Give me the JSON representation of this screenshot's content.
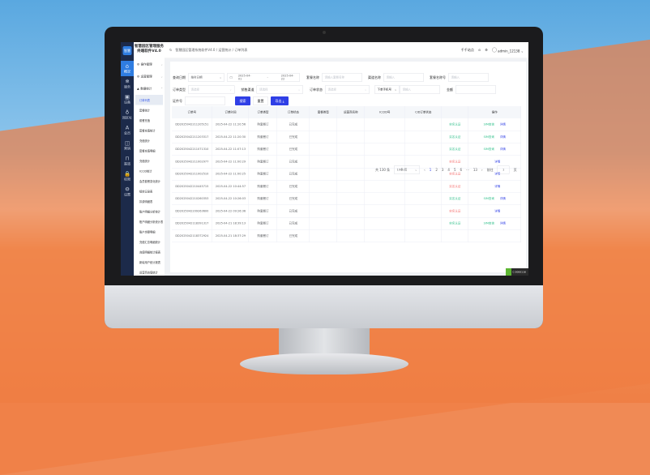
{
  "app": {
    "logo": "智慧",
    "title": "智慧园区管理服务终端软件V4.0"
  },
  "iconbar": [
    {
      "icon": "home-icon",
      "g": "⌂",
      "label": "概况"
    },
    {
      "icon": "service-icon",
      "g": "❄",
      "label": "服务"
    },
    {
      "icon": "device-icon",
      "g": "▣",
      "label": "设备"
    },
    {
      "icon": "park-icon",
      "g": "♁",
      "label": "园区址"
    },
    {
      "icon": "member-icon",
      "g": "A",
      "label": "会员"
    },
    {
      "icon": "marketing-icon",
      "g": "◫",
      "label": "营销"
    },
    {
      "icon": "channel-icon",
      "g": "⊓",
      "label": "渠道"
    },
    {
      "icon": "lock-icon",
      "g": "🔒",
      "label": "权限"
    },
    {
      "icon": "settings-icon",
      "g": "⚙",
      "label": "设置"
    }
  ],
  "menu": {
    "groups": [
      "操作管理",
      "运营管理",
      "数据统计"
    ],
    "items": [
      "订单列表",
      "套餐统计",
      "套餐充值",
      "套餐充值统计",
      "充值统计",
      "套餐充值明细",
      "充值统计",
      "ICCID统计",
      "会员套餐变化统计",
      "短信记录表",
      "扣费明细表",
      "账户明细分析统计",
      "账户明细分析统计表",
      "账户余额明细",
      "充值汇总明细统计",
      "充值明细统计报表",
      "新增用户统计报表",
      "运营商充值统计"
    ]
  },
  "header": {
    "breadcrumb": "智慧园区管理系统软件V4.0 / 运营统计 / 订单列表",
    "site": "千千站点",
    "user": "admin_12138"
  },
  "filters": {
    "date_label": "查询日期",
    "date_type": "按时日期",
    "date_start": "2025-04-01",
    "date_sep": "-",
    "date_end": "2025-04-22",
    "pkg_label": "套餐名称",
    "pkg_ph": "请输入套餐名称",
    "channel_label": "渠道名称",
    "channel_ph": "请输入",
    "pkgno_label": "套餐名称号",
    "pkgno_ph": "请输入",
    "type_label": "订单类型",
    "type_ph": "请选择",
    "sales_label": "销售渠道",
    "sales_ph": "请选择",
    "status_label": "订单状态",
    "status_ph": "请选择",
    "phone_sel": "下单手机号",
    "phone_ph": "请输入",
    "amount_label": "金额",
    "id_label": "证件号",
    "search": "搜索",
    "reset": "重置",
    "export": "导出 ⤓"
  },
  "table": {
    "columns": [
      "订单号",
      "订单时间",
      "订单类型",
      "订单状态",
      "套餐类型",
      "运营商名称",
      "ICCID号",
      "CID订单状态",
      "",
      "操作"
    ],
    "rows": [
      {
        "id": "DD2025042211205151",
        "time": "2025-04-22 11:20:56",
        "type": "购套餐订",
        "status": "已完成",
        "tag": "实名认证",
        "ok": true,
        "sim": "SIM查询",
        "detail": "详情"
      },
      {
        "id": "DD2025042211203317",
        "time": "2025-04-22 11:20:30",
        "type": "购套餐订",
        "status": "已完成",
        "tag": "实名认证",
        "ok": true,
        "sim": "SIM查询",
        "detail": "详情"
      },
      {
        "id": "DD2025042211071310",
        "time": "2025-04-22 11:07:13",
        "type": "购套餐订",
        "status": "已完成",
        "tag": "实名认证",
        "ok": true,
        "sim": "SIM查询",
        "detail": "详情"
      },
      {
        "id": "DD2025042211002977",
        "time": "2025-04-22 11:00:29",
        "type": "购套餐订",
        "status": "已完成",
        "tag": "实名认证",
        "ok": false,
        "sim": "",
        "detail": "详情"
      },
      {
        "id": "DD2025042211002510",
        "time": "2025-04-22 11:00:25",
        "type": "购套餐订",
        "status": "已完成",
        "tag": "实名认证",
        "ok": false,
        "sim": "",
        "detail": "详情"
      },
      {
        "id": "DD2025042210445715",
        "time": "2025-04-22 10:44:57",
        "type": "购套餐订",
        "status": "已完成",
        "tag": "实名认证",
        "ok": false,
        "sim": "",
        "detail": "详情"
      },
      {
        "id": "DD2025042210260353",
        "time": "2025-04-22 10:26:03",
        "type": "购套餐订",
        "status": "已完成",
        "tag": "实名认证",
        "ok": true,
        "sim": "SIM查询",
        "detail": "详情"
      },
      {
        "id": "DD2025042209263600",
        "time": "2025-04-22 09:26:36",
        "type": "购套餐订",
        "status": "已完成",
        "tag": "实名认证",
        "ok": false,
        "sim": "",
        "detail": "详情"
      },
      {
        "id": "DD2025042118391317",
        "time": "2025-04-21 18:39:13",
        "type": "购套餐订",
        "status": "已完成",
        "tag": "实名认证",
        "ok": true,
        "sim": "SIM查询",
        "detail": "详情"
      },
      {
        "id": "DD2025042118372924",
        "time": "2025-04-21 18:37:29",
        "type": "购套餐订",
        "status": "已完成",
        "tag": "",
        "ok": true,
        "sim": "",
        "detail": ""
      }
    ]
  },
  "pager": {
    "total": "共 130 条",
    "size": "10条/页",
    "pages": [
      "1",
      "2",
      "3",
      "4",
      "5",
      "6",
      "···",
      "13"
    ],
    "goto": "前往",
    "page": "1",
    "unit": "页"
  },
  "badge": "C 0000116",
  "colors": {
    "sidebar": "#1c2a4a",
    "accent": "#2f3fe6",
    "ok": "#2fbf8a",
    "warn": "#f56c6c"
  }
}
